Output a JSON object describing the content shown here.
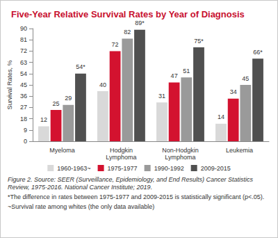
{
  "chart_data": {
    "type": "bar",
    "title": "Five-Year Relative Survival Rates by Year of Diagnosis",
    "y_label": "Survival Rates, %",
    "categories": [
      "Myeloma",
      "Hodgkin Lymphoma",
      "Non-Hodgkin Lymphoma",
      "Leukemia"
    ],
    "series": [
      {
        "name": "1960-1963~",
        "color": "#d9d9d9",
        "values": [
          12,
          40,
          31,
          14
        ],
        "value_labels": [
          "12",
          "40",
          "31",
          "14"
        ]
      },
      {
        "name": "1975-1977",
        "color": "#d3122f",
        "values": [
          25,
          72,
          47,
          34
        ],
        "value_labels": [
          "25",
          "72",
          "47",
          "34"
        ]
      },
      {
        "name": "1990-1992",
        "color": "#9a9a9a",
        "values": [
          29,
          82,
          51,
          45
        ],
        "value_labels": [
          "29",
          "82",
          "51",
          "45"
        ]
      },
      {
        "name": "2009-2015",
        "color": "#505050",
        "values": [
          54,
          89,
          75,
          66
        ],
        "value_labels": [
          "54*",
          "89*",
          "75*",
          "66*"
        ]
      }
    ],
    "ylim": [
      0,
      90
    ],
    "yticks": [
      0,
      9,
      18,
      27,
      36,
      45,
      54,
      63,
      72,
      81,
      90
    ],
    "grid": false,
    "legend": "bottom",
    "data_labels": true,
    "annotations": [
      "Figure 2. Source: SEER (Surveillance, Epidemiology, and End Results) Cancer Statistics Review, 1975-2016. National Cancer Institute; 2019.",
      "*The difference in rates between 1975-1977 and 2009-2015 is statistically significant (p<.05).",
      "~Survival rate among whites (the only data available)"
    ]
  }
}
